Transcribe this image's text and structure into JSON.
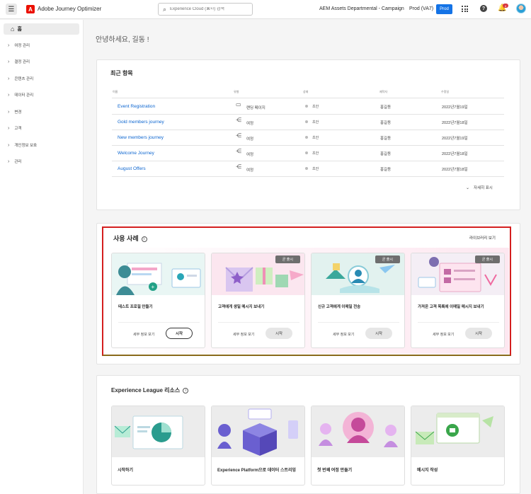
{
  "topbar": {
    "app_title": "Adobe Journey Optimizer",
    "search_placeholder": "Experience Cloud (⌘+/) 검색",
    "org": "AEM Assets Departmental - Campaign",
    "sandbox": "Prod (VA7)",
    "env_badge": "Prod",
    "notification_count": "4"
  },
  "sidebar": {
    "home": "홈",
    "items": [
      {
        "label": "여정 관리"
      },
      {
        "label": "결정 관리"
      },
      {
        "label": "콘텐츠 관리"
      },
      {
        "label": "데이터 관리"
      },
      {
        "label": "변경"
      },
      {
        "label": "고객"
      },
      {
        "label": "개인정보 보호"
      },
      {
        "label": "관리"
      }
    ]
  },
  "greeting": "안녕하세요, 길동 !",
  "recent": {
    "title": "최근 항목",
    "headers": [
      "이름",
      "유형",
      "상태",
      "제작자",
      "수정일"
    ],
    "rows": [
      {
        "name": "Event Registration",
        "type": "랜딩 페이지",
        "type_icon": "landing-page-icon",
        "status": "초안",
        "author": "홍길동",
        "date": "2022년7월19일"
      },
      {
        "name": "Gold members journey",
        "type": "여정",
        "type_icon": "journey-icon",
        "status": "초안",
        "author": "홍길동",
        "date": "2022년7월18일"
      },
      {
        "name": "New members journey",
        "type": "여정",
        "type_icon": "journey-icon",
        "status": "초안",
        "author": "홍길동",
        "date": "2022년7월19일"
      },
      {
        "name": "Welcome Journey",
        "type": "여정",
        "type_icon": "journey-icon",
        "status": "초안",
        "author": "홍길동",
        "date": "2022년7월18일"
      },
      {
        "name": "August Offers",
        "type": "여정",
        "type_icon": "journey-icon",
        "status": "초안",
        "author": "홍길동",
        "date": "2022년7월18일"
      }
    ],
    "show_more": "자세히 표시"
  },
  "usecases": {
    "title": "사용 사례",
    "library_link": "라이브러리 보기",
    "cards": [
      {
        "name": "테스트 프로필 만들기",
        "tag": "",
        "detail": "세부 정보 보기",
        "start": "시작"
      },
      {
        "name": "고객에게 생일 메시지 보내기",
        "tag": "곧 출시",
        "detail": "세부 정보 보기",
        "start": "시작"
      },
      {
        "name": "신규 고객에게 이메일 전송",
        "tag": "곧 출시",
        "detail": "세부 정보 보기",
        "start": "시작"
      },
      {
        "name": "가져온 고객 목록에 이메일 메시지 보내기",
        "tag": "곧 출시",
        "detail": "세부 정보 보기",
        "start": "시작"
      }
    ]
  },
  "league": {
    "title": "Experience League 리소스",
    "cards": [
      {
        "name": "시작하기"
      },
      {
        "name": "Experience Platform으로 데이터 스트리밍"
      },
      {
        "name": "첫 번째 여정 만들기"
      },
      {
        "name": "메시지 작성"
      }
    ]
  }
}
